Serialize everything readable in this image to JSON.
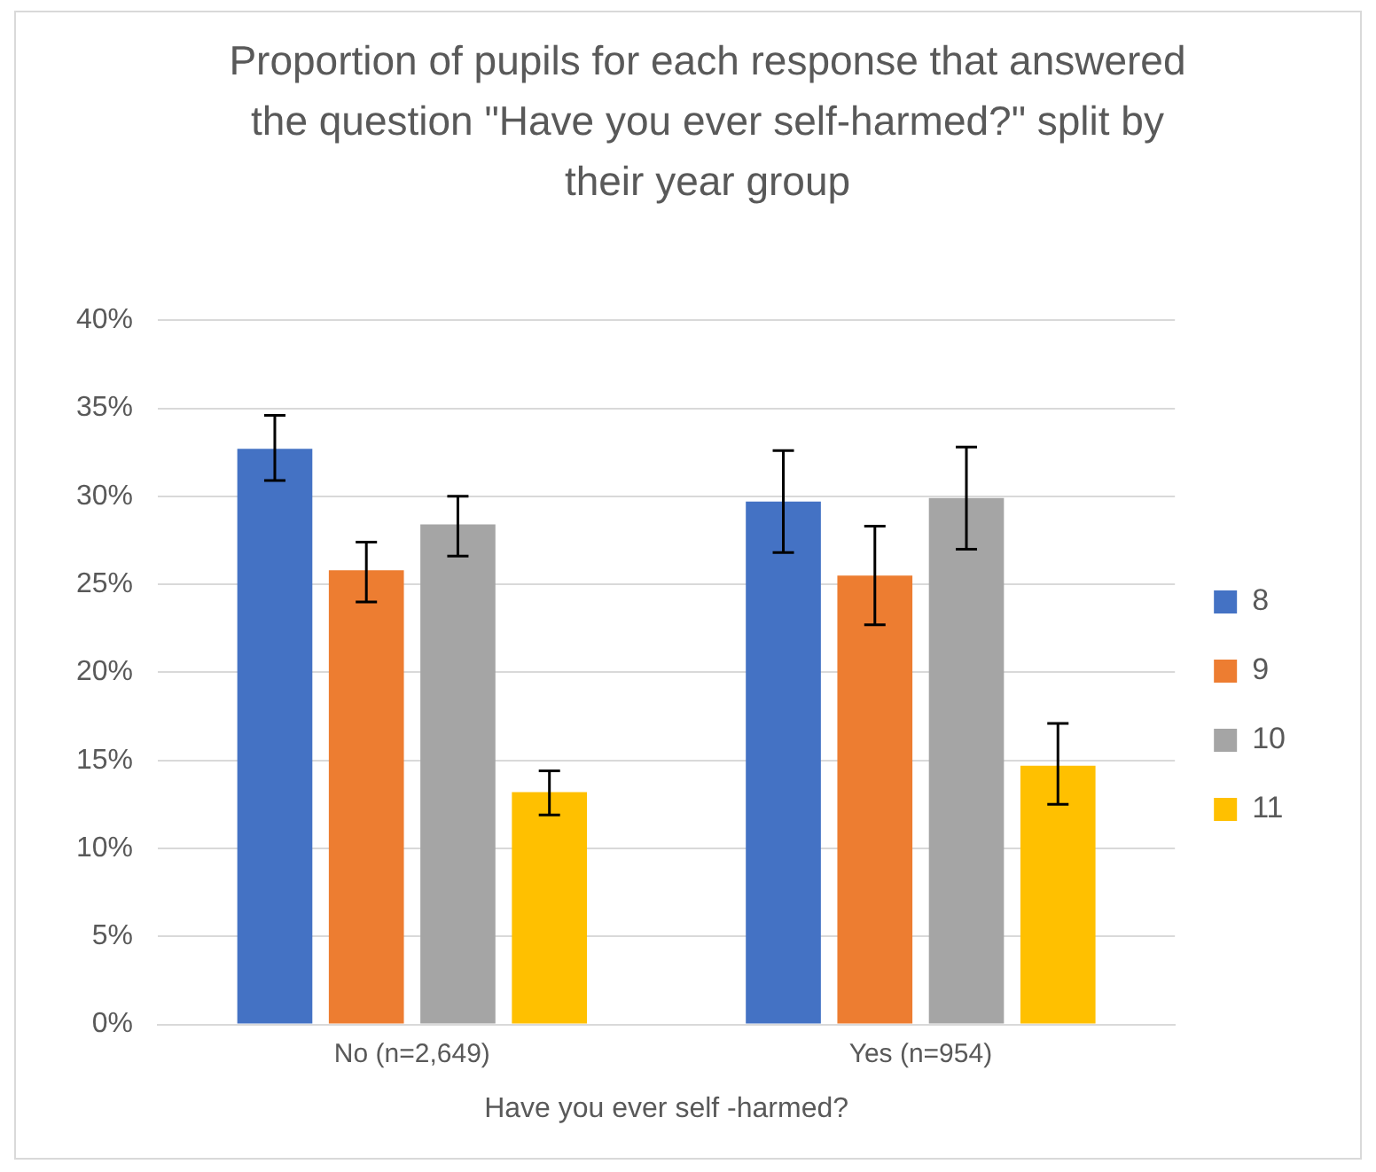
{
  "chart_data": {
    "type": "bar",
    "title": "Proportion of pupils for each response that answered the question \"Have you ever self-harmed?\" split by their year group",
    "xlabel": "Have you ever self -harmed?",
    "categories": [
      "No (n=2,649)",
      "Yes (n=954)"
    ],
    "series": [
      {
        "name": "8",
        "color": "#4472c4",
        "values": [
          32.7,
          29.7
        ],
        "errors": [
          [
            30.9,
            34.6
          ],
          [
            26.8,
            32.6
          ]
        ]
      },
      {
        "name": "9",
        "color": "#ed7d31",
        "values": [
          25.8,
          25.5
        ],
        "errors": [
          [
            24.0,
            27.4
          ],
          [
            22.7,
            28.3
          ]
        ]
      },
      {
        "name": "10",
        "color": "#a5a5a5",
        "values": [
          28.4,
          29.9
        ],
        "errors": [
          [
            26.6,
            30.0
          ],
          [
            27.0,
            32.8
          ]
        ]
      },
      {
        "name": "11",
        "color": "#ffc000",
        "values": [
          13.2,
          14.7
        ],
        "errors": [
          [
            11.9,
            14.4
          ],
          [
            12.5,
            17.1
          ]
        ]
      }
    ],
    "ylim": [
      0,
      40
    ],
    "yticks": [
      {
        "value": 0,
        "label": "0%"
      },
      {
        "value": 5,
        "label": "5%"
      },
      {
        "value": 10,
        "label": "10%"
      },
      {
        "value": 15,
        "label": "15%"
      },
      {
        "value": 20,
        "label": "20%"
      },
      {
        "value": 25,
        "label": "25%"
      },
      {
        "value": 30,
        "label": "30%"
      },
      {
        "value": 35,
        "label": "35%"
      },
      {
        "value": 40,
        "label": "40%"
      }
    ],
    "grid": "y",
    "legend": "right"
  }
}
